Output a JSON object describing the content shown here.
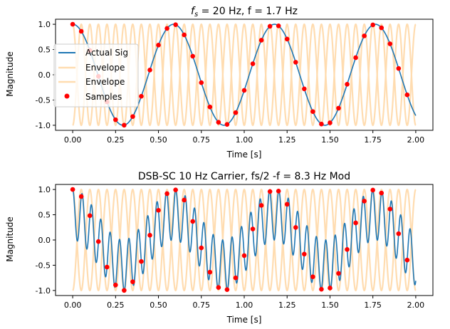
{
  "chart_data": [
    {
      "type": "line",
      "title_prefix": "f",
      "title_sub": "s",
      "title_rest": " = 20 Hz, f = 1.7 Hz",
      "xlabel": "Time [s]",
      "ylabel": "Magnitude",
      "xlim": [
        -0.1,
        2.1
      ],
      "ylim": [
        -1.1,
        1.1
      ],
      "xticks": [
        "0.00",
        "0.25",
        "0.50",
        "0.75",
        "1.00",
        "1.25",
        "1.50",
        "1.75",
        "2.00"
      ],
      "yticks": [
        "-1.0",
        "-0.5",
        "0.0",
        "0.5",
        "1.0"
      ],
      "legend": {
        "position": "center-left",
        "entries": [
          "Actual Sig",
          "Envelope",
          "Envelope",
          "Samples"
        ]
      },
      "series": [
        {
          "name": "Actual Sig",
          "formula": "cos(2*pi*1.7*t)",
          "t_range": [
            0,
            2
          ],
          "color": "#1f77b4"
        },
        {
          "name": "Envelope",
          "formula": "cos(2*pi*10*t)",
          "t_range": [
            0,
            2
          ],
          "color": "#ffdcb0"
        },
        {
          "name": "Envelope",
          "formula": "-cos(2*pi*10*t)",
          "t_range": [
            0,
            2
          ],
          "color": "#ffdcb0"
        },
        {
          "name": "Samples",
          "formula": "cos(2*pi*1.7*n/20)",
          "sample_rate": 20,
          "n_samples": 40,
          "color": "#ff0000"
        }
      ]
    },
    {
      "type": "line",
      "title": "DSB-SC 10 Hz Carrier, fs/2 -f = 8.3 Hz Mod",
      "xlabel": "Time [s]",
      "ylabel": "Magnitude",
      "xlim": [
        -0.1,
        2.1
      ],
      "ylim": [
        -1.1,
        1.1
      ],
      "xticks": [
        "0.00",
        "0.25",
        "0.50",
        "0.75",
        "1.00",
        "1.25",
        "1.50",
        "1.75",
        "2.00"
      ],
      "yticks": [
        "-1.0",
        "-0.5",
        "0.0",
        "0.5",
        "1.0"
      ],
      "series": [
        {
          "formula": "cos(2*pi*10*t)*cos(2*pi*8.3*t)",
          "t_range": [
            0,
            2
          ],
          "color": "#1f77b4"
        },
        {
          "formula": "cos(2*pi*10*t)",
          "t_range": [
            0,
            2
          ],
          "color": "#ffdcb0"
        },
        {
          "formula": "-cos(2*pi*10*t)",
          "t_range": [
            0,
            2
          ],
          "color": "#ffdcb0"
        },
        {
          "formula": "cos(2*pi*1.7*n/20)",
          "sample_rate": 20,
          "n_samples": 40,
          "color": "#ff0000"
        }
      ]
    }
  ]
}
